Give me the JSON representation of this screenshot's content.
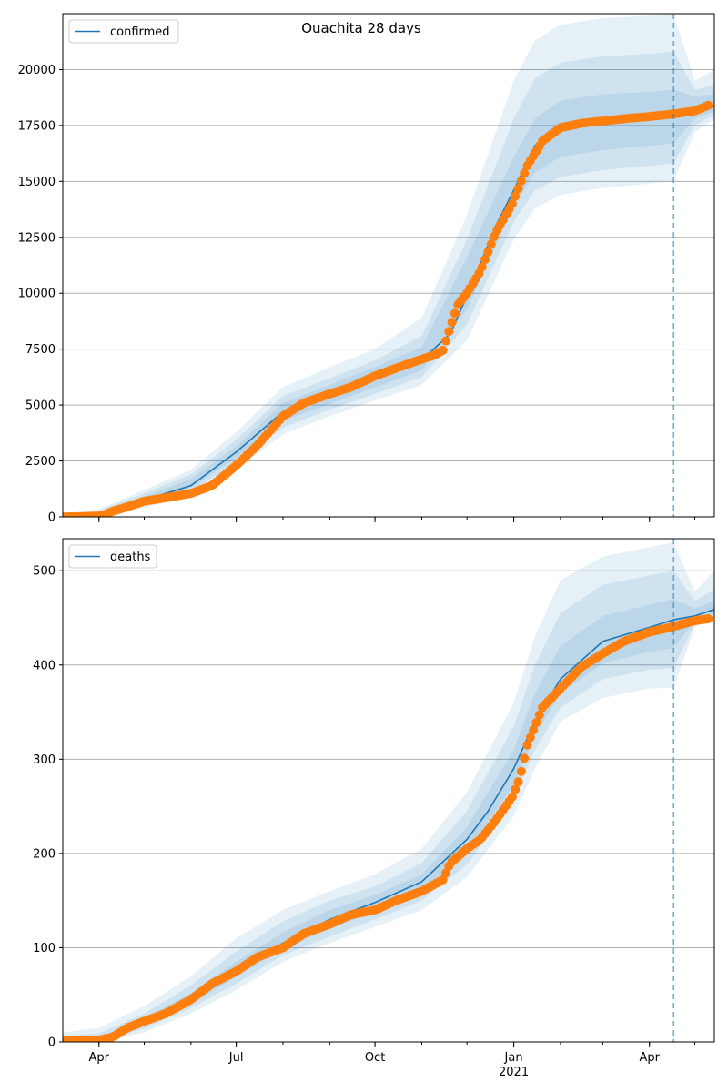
{
  "title": "Ouachita 28 days",
  "colors": {
    "model_line": "#1f77b4",
    "observed": "#ff7f0e",
    "band": "#1f77b4",
    "grid": "#b0b0b0"
  },
  "chart_data": [
    {
      "type": "line",
      "name": "confirmed-panel",
      "title": "Ouachita 28 days",
      "legend": [
        "confirmed"
      ],
      "legend_position": "top-left",
      "grid": "y",
      "xlim": [
        "2020-03-08",
        "2021-05-14"
      ],
      "ylim": [
        0,
        22500
      ],
      "yticks": [
        0,
        2500,
        5000,
        7500,
        10000,
        12500,
        15000,
        17500,
        20000
      ],
      "xticks_major": [
        {
          "date": "2020-04-01",
          "label": "Apr"
        },
        {
          "date": "2020-07-01",
          "label": "Jul"
        },
        {
          "date": "2020-10-01",
          "label": "Oct"
        },
        {
          "date": "2021-01-01",
          "label": "Jan",
          "sublabel": "2021"
        },
        {
          "date": "2021-04-01",
          "label": "Apr"
        }
      ],
      "forecast_start": "2021-04-17",
      "series": [
        {
          "name": "confirmed",
          "role": "model median",
          "dates": [
            "2020-03-08",
            "2020-03-25",
            "2020-04-10",
            "2020-05-01",
            "2020-06-01",
            "2020-07-01",
            "2020-08-01",
            "2020-09-01",
            "2020-10-01",
            "2020-11-01",
            "2020-11-20",
            "2020-12-05",
            "2020-12-20",
            "2021-01-01",
            "2021-01-15",
            "2021-02-01",
            "2021-03-01",
            "2021-04-01",
            "2021-04-17",
            "2021-05-01",
            "2021-05-14"
          ],
          "values": [
            0,
            30,
            250,
            750,
            1400,
            2900,
            4700,
            5500,
            6300,
            7000,
            8200,
            10500,
            13000,
            14600,
            16600,
            17500,
            17800,
            17900,
            18050,
            18200,
            18350
          ]
        },
        {
          "name": "band-outer",
          "role": "uncertainty 95%",
          "dates": [
            "2020-03-08",
            "2020-04-01",
            "2020-05-01",
            "2020-06-01",
            "2020-07-01",
            "2020-08-01",
            "2020-09-01",
            "2020-10-01",
            "2020-11-01",
            "2020-12-01",
            "2021-01-01",
            "2021-01-15",
            "2021-02-01",
            "2021-03-01",
            "2021-04-01",
            "2021-04-17",
            "2021-05-01",
            "2021-05-14"
          ],
          "lower": [
            0,
            50,
            400,
            1000,
            2100,
            3700,
            4500,
            5200,
            5900,
            7900,
            12400,
            13800,
            14400,
            14700,
            14900,
            15000,
            17200,
            17800
          ],
          "upper": [
            100,
            350,
            1200,
            2100,
            3800,
            5800,
            6700,
            7500,
            8900,
            13500,
            19500,
            21300,
            22000,
            22300,
            22400,
            22500,
            19500,
            20000
          ]
        },
        {
          "name": "band-middle",
          "role": "uncertainty 80%",
          "dates": [
            "2020-03-08",
            "2020-04-01",
            "2020-05-01",
            "2020-06-01",
            "2020-07-01",
            "2020-08-01",
            "2020-09-01",
            "2020-10-01",
            "2020-11-01",
            "2020-12-01",
            "2021-01-01",
            "2021-01-15",
            "2021-02-01",
            "2021-03-01",
            "2021-04-01",
            "2021-04-17",
            "2021-05-01",
            "2021-05-14"
          ],
          "lower": [
            0,
            80,
            520,
            1150,
            2400,
            4000,
            4800,
            5500,
            6250,
            8600,
            13200,
            14600,
            15200,
            15500,
            15700,
            15800,
            17500,
            18000
          ],
          "upper": [
            60,
            280,
            1050,
            1900,
            3450,
            5400,
            6200,
            7000,
            8100,
            12400,
            17800,
            19600,
            20300,
            20600,
            20700,
            20800,
            19100,
            19300
          ]
        },
        {
          "name": "band-inner",
          "role": "uncertainty 50%",
          "dates": [
            "2020-03-08",
            "2020-04-01",
            "2020-05-01",
            "2020-06-01",
            "2020-07-01",
            "2020-08-01",
            "2020-09-01",
            "2020-10-01",
            "2020-11-01",
            "2020-12-01",
            "2021-01-01",
            "2021-01-15",
            "2021-02-01",
            "2021-03-01",
            "2021-04-01",
            "2021-04-17",
            "2021-05-01",
            "2021-05-14"
          ],
          "lower": [
            10,
            110,
            620,
            1300,
            2650,
            4300,
            5050,
            5800,
            6550,
            9300,
            13900,
            15400,
            16100,
            16400,
            16600,
            16700,
            17800,
            18150
          ],
          "upper": [
            40,
            220,
            900,
            1700,
            3150,
            5100,
            5900,
            6700,
            7600,
            11600,
            16100,
            17800,
            18600,
            18900,
            19000,
            19100,
            18800,
            18900
          ]
        },
        {
          "name": "observed",
          "role": "observed points",
          "dates": [
            "2020-03-08",
            "2020-03-20",
            "2020-04-01",
            "2020-04-05",
            "2020-04-10",
            "2020-04-20",
            "2020-05-01",
            "2020-05-15",
            "2020-06-01",
            "2020-06-15",
            "2020-07-01",
            "2020-07-15",
            "2020-08-01",
            "2020-08-15",
            "2020-09-01",
            "2020-09-15",
            "2020-10-01",
            "2020-10-15",
            "2020-11-01",
            "2020-11-10",
            "2020-11-15",
            "2020-11-20",
            "2020-11-25",
            "2020-12-01",
            "2020-12-10",
            "2020-12-20",
            "2020-12-31",
            "2021-01-10",
            "2021-01-20",
            "2021-02-01",
            "2021-02-15",
            "2021-03-01",
            "2021-03-15",
            "2021-04-01",
            "2021-04-15",
            "2021-05-01",
            "2021-05-10"
          ],
          "values": [
            0,
            10,
            40,
            100,
            250,
            450,
            700,
            850,
            1050,
            1400,
            2300,
            3200,
            4500,
            5100,
            5500,
            5800,
            6300,
            6650,
            7050,
            7250,
            7450,
            8500,
            9500,
            10000,
            11000,
            12700,
            14000,
            15700,
            16800,
            17400,
            17600,
            17700,
            17800,
            17900,
            18000,
            18150,
            18400
          ]
        }
      ]
    },
    {
      "type": "line",
      "name": "deaths-panel",
      "legend": [
        "deaths"
      ],
      "legend_position": "top-left",
      "grid": "y",
      "xlim": [
        "2020-03-08",
        "2021-05-14"
      ],
      "ylim": [
        0,
        534
      ],
      "yticks": [
        0,
        100,
        200,
        300,
        400,
        500
      ],
      "xticks_major": [
        {
          "date": "2020-04-01",
          "label": "Apr"
        },
        {
          "date": "2020-07-01",
          "label": "Jul"
        },
        {
          "date": "2020-10-01",
          "label": "Oct"
        },
        {
          "date": "2021-01-01",
          "label": "Jan",
          "sublabel": "2021"
        },
        {
          "date": "2021-04-01",
          "label": "Apr"
        }
      ],
      "forecast_start": "2021-04-17",
      "series": [
        {
          "name": "deaths",
          "role": "model median",
          "dates": [
            "2020-03-08",
            "2020-04-01",
            "2020-04-15",
            "2020-05-01",
            "2020-06-01",
            "2020-07-01",
            "2020-08-01",
            "2020-09-01",
            "2020-10-01",
            "2020-11-01",
            "2020-12-01",
            "2020-12-15",
            "2021-01-01",
            "2021-01-15",
            "2021-02-01",
            "2021-03-01",
            "2021-04-01",
            "2021-04-17",
            "2021-05-01",
            "2021-05-14"
          ],
          "values": [
            0,
            2,
            8,
            20,
            45,
            75,
            105,
            130,
            148,
            170,
            215,
            245,
            290,
            340,
            385,
            425,
            440,
            448,
            452,
            459
          ]
        },
        {
          "name": "band-outer",
          "role": "uncertainty 95%",
          "dates": [
            "2020-03-08",
            "2020-04-01",
            "2020-05-01",
            "2020-06-01",
            "2020-07-01",
            "2020-08-01",
            "2020-09-01",
            "2020-10-01",
            "2020-11-01",
            "2020-12-01",
            "2021-01-01",
            "2021-01-15",
            "2021-02-01",
            "2021-03-01",
            "2021-04-01",
            "2021-04-17",
            "2021-05-01",
            "2021-05-14"
          ],
          "lower": [
            0,
            0,
            10,
            30,
            55,
            85,
            105,
            122,
            140,
            175,
            240,
            290,
            340,
            365,
            375,
            376,
            440,
            450
          ],
          "upper": [
            10,
            15,
            38,
            70,
            110,
            140,
            160,
            178,
            205,
            265,
            360,
            430,
            490,
            515,
            525,
            530,
            478,
            500
          ]
        },
        {
          "name": "band-middle",
          "role": "uncertainty 80%",
          "dates": [
            "2020-03-08",
            "2020-04-01",
            "2020-05-01",
            "2020-06-01",
            "2020-07-01",
            "2020-08-01",
            "2020-09-01",
            "2020-10-01",
            "2020-11-01",
            "2020-12-01",
            "2021-01-01",
            "2021-01-15",
            "2021-02-01",
            "2021-03-01",
            "2021-04-01",
            "2021-04-17",
            "2021-05-01",
            "2021-05-14"
          ],
          "lower": [
            0,
            1,
            14,
            36,
            62,
            92,
            112,
            130,
            150,
            188,
            258,
            310,
            355,
            385,
            395,
            397,
            444,
            453
          ],
          "upper": [
            6,
            9,
            30,
            60,
            96,
            128,
            150,
            165,
            190,
            245,
            335,
            400,
            455,
            485,
            495,
            500,
            468,
            480
          ]
        },
        {
          "name": "band-inner",
          "role": "uncertainty 50%",
          "dates": [
            "2020-03-08",
            "2020-04-01",
            "2020-05-01",
            "2020-06-01",
            "2020-07-01",
            "2020-08-01",
            "2020-09-01",
            "2020-10-01",
            "2020-11-01",
            "2020-12-01",
            "2021-01-01",
            "2021-01-15",
            "2021-02-01",
            "2021-03-01",
            "2021-04-01",
            "2021-04-17",
            "2021-05-01",
            "2021-05-14"
          ],
          "lower": [
            0,
            2,
            17,
            41,
            69,
            99,
            120,
            138,
            160,
            200,
            273,
            325,
            370,
            402,
            414,
            418,
            447,
            455
          ],
          "upper": [
            3,
            5,
            25,
            52,
            85,
            116,
            140,
            156,
            178,
            228,
            310,
            370,
            420,
            452,
            464,
            470,
            460,
            468
          ]
        },
        {
          "name": "observed",
          "role": "observed points",
          "dates": [
            "2020-03-08",
            "2020-04-01",
            "2020-04-10",
            "2020-04-20",
            "2020-05-01",
            "2020-05-15",
            "2020-06-01",
            "2020-06-15",
            "2020-07-01",
            "2020-07-15",
            "2020-08-01",
            "2020-08-15",
            "2020-09-01",
            "2020-09-15",
            "2020-10-01",
            "2020-10-15",
            "2020-11-01",
            "2020-11-15",
            "2020-11-20",
            "2020-12-01",
            "2020-12-10",
            "2020-12-20",
            "2020-12-31",
            "2021-01-05",
            "2021-01-10",
            "2021-01-20",
            "2021-02-01",
            "2021-02-15",
            "2021-03-01",
            "2021-03-15",
            "2021-04-01",
            "2021-04-15",
            "2021-05-01",
            "2021-05-10"
          ],
          "values": [
            2,
            2,
            5,
            15,
            22,
            30,
            45,
            62,
            75,
            90,
            100,
            115,
            125,
            135,
            140,
            150,
            160,
            172,
            190,
            205,
            215,
            235,
            260,
            280,
            315,
            355,
            375,
            398,
            412,
            425,
            435,
            440,
            447,
            449
          ]
        }
      ]
    }
  ]
}
